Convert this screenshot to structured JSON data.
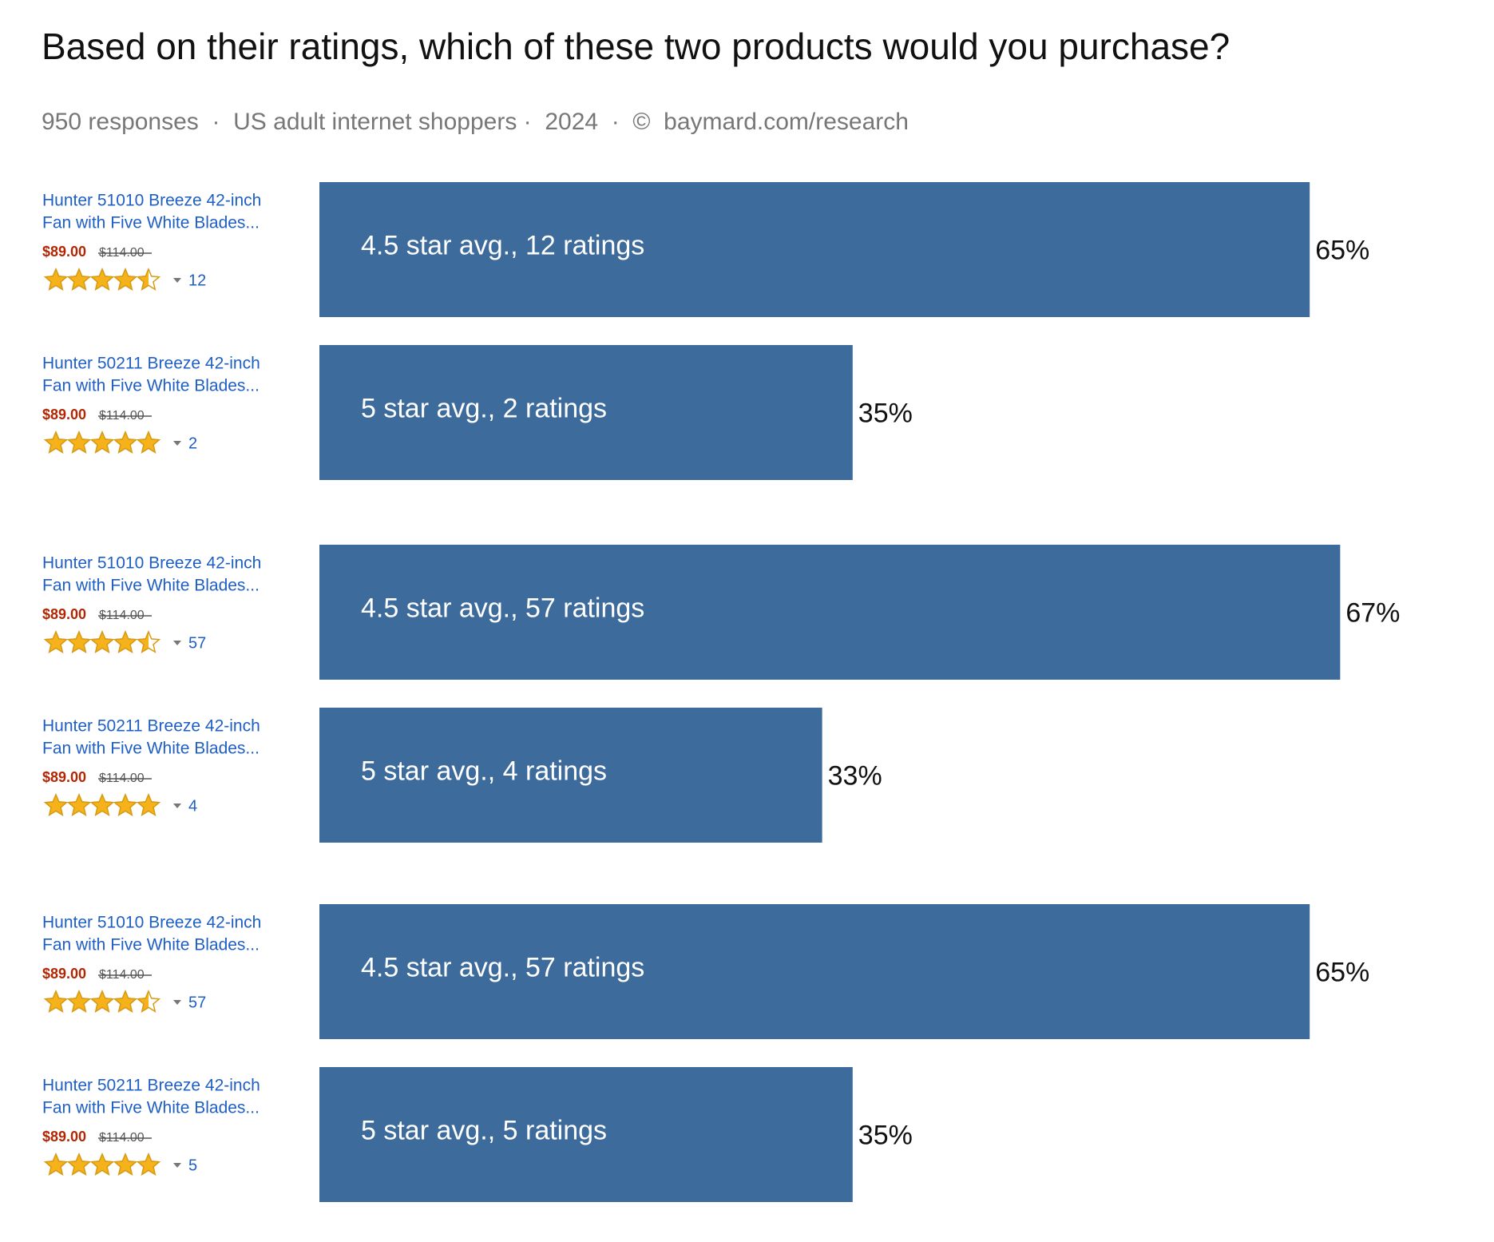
{
  "chart_data": {
    "type": "bar",
    "title": "Based on their ratings, which of these two products would you purchase?",
    "subtitle": "950 responses  ·  US adult internet shoppers ·  2024  ·  ©  baymard.com/research",
    "categories": [
      "4.5 star avg., 12 ratings",
      "5 star avg., 2 ratings",
      "4.5 star avg., 57 ratings",
      "5 star avg., 4 ratings",
      "4.5 star avg., 57 ratings",
      "5 star avg., 5 ratings"
    ],
    "values": [
      65,
      35,
      67,
      33,
      65,
      35
    ],
    "value_labels": [
      "65%",
      "35%",
      "67%",
      "33%",
      "65%",
      "35%"
    ],
    "color": "#3d6b9c",
    "products": [
      {
        "name": [
          "Hunter 51010 Breeze 42-inch",
          "Fan with Five White Blades..."
        ],
        "price": "$89.00",
        "list_price": "$114.00",
        "stars": 4.5,
        "rating_count": "12"
      },
      {
        "name": [
          "Hunter 50211 Breeze 42-inch",
          "Fan with Five White Blades..."
        ],
        "price": "$89.00",
        "list_price": "$114.00",
        "stars": 5,
        "rating_count": "2"
      },
      {
        "name": [
          "Hunter 51010 Breeze 42-inch",
          "Fan with Five White Blades..."
        ],
        "price": "$89.00",
        "list_price": "$114.00",
        "stars": 4.5,
        "rating_count": "57"
      },
      {
        "name": [
          "Hunter 50211 Breeze 42-inch",
          "Fan with Five White Blades..."
        ],
        "price": "$89.00",
        "list_price": "$114.00",
        "stars": 5,
        "rating_count": "4"
      },
      {
        "name": [
          "Hunter 51010 Breeze 42-inch",
          "Fan with Five White Blades..."
        ],
        "price": "$89.00",
        "list_price": "$114.00",
        "stars": 4.5,
        "rating_count": "57"
      },
      {
        "name": [
          "Hunter 50211 Breeze 42-inch",
          "Fan with Five White Blades..."
        ],
        "price": "$89.00",
        "list_price": "$114.00",
        "stars": 5,
        "rating_count": "5"
      }
    ]
  }
}
